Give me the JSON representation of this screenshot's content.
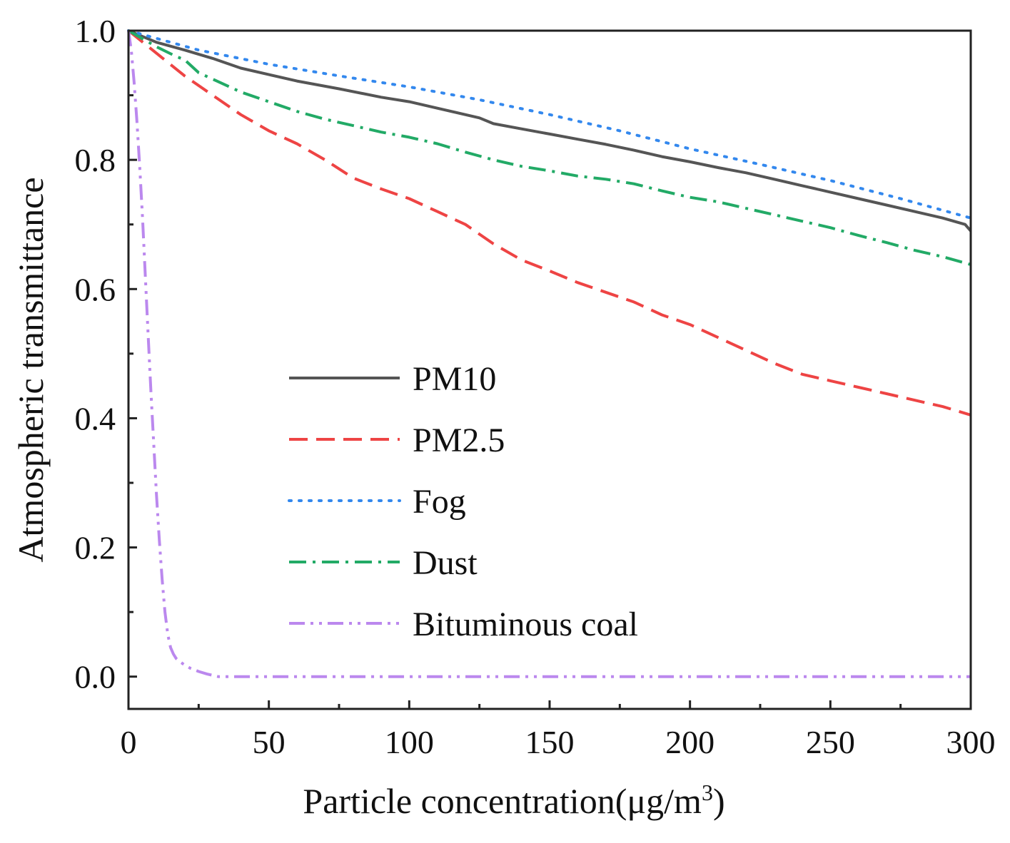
{
  "chart_data": {
    "type": "line",
    "title": "",
    "xlabel": "Particle concentration(μg/m",
    "xlabel_superscript": "3",
    "xlabel_suffix": ")",
    "ylabel": "Atmospheric transmittance",
    "xlim": [
      0,
      300
    ],
    "ylim": [
      -0.05,
      1.0
    ],
    "xticks": [
      0,
      50,
      100,
      150,
      200,
      250,
      300
    ],
    "yticks": [
      0.0,
      0.2,
      0.4,
      0.6,
      0.8,
      1.0
    ],
    "xtick_labels": [
      "0",
      "50",
      "100",
      "150",
      "200",
      "250",
      "300"
    ],
    "ytick_labels": [
      "0.0",
      "0.2",
      "0.4",
      "0.6",
      "0.8",
      "1.0"
    ],
    "grid": false,
    "legend_position": "center-left",
    "series": [
      {
        "name": "PM10",
        "color": "#555555",
        "style": "solid",
        "x": [
          0,
          10,
          20,
          30,
          40,
          50,
          60,
          75,
          90,
          100,
          110,
          125,
          130,
          140,
          150,
          160,
          170,
          180,
          190,
          200,
          210,
          220,
          230,
          240,
          250,
          260,
          270,
          280,
          290,
          298,
          300
        ],
        "y": [
          1.0,
          0.982,
          0.97,
          0.957,
          0.942,
          0.932,
          0.922,
          0.91,
          0.897,
          0.89,
          0.88,
          0.865,
          0.856,
          0.848,
          0.84,
          0.832,
          0.824,
          0.815,
          0.805,
          0.797,
          0.788,
          0.78,
          0.77,
          0.76,
          0.75,
          0.74,
          0.73,
          0.72,
          0.71,
          0.7,
          0.69
        ]
      },
      {
        "name": "PM2.5",
        "color": "#ee4444",
        "style": "dashed",
        "x": [
          0,
          10,
          20,
          30,
          40,
          50,
          60,
          70,
          80,
          90,
          100,
          110,
          120,
          130,
          140,
          150,
          160,
          170,
          180,
          190,
          200,
          210,
          220,
          230,
          240,
          250,
          260,
          270,
          280,
          290,
          300
        ],
        "y": [
          1.0,
          0.965,
          0.93,
          0.9,
          0.87,
          0.845,
          0.825,
          0.8,
          0.772,
          0.755,
          0.74,
          0.72,
          0.7,
          0.67,
          0.645,
          0.628,
          0.61,
          0.595,
          0.58,
          0.56,
          0.545,
          0.525,
          0.505,
          0.485,
          0.468,
          0.458,
          0.448,
          0.438,
          0.428,
          0.418,
          0.405
        ]
      },
      {
        "name": "Fog",
        "color": "#3388ee",
        "style": "dotted",
        "x": [
          0,
          25,
          50,
          75,
          100,
          125,
          150,
          175,
          200,
          225,
          250,
          275,
          300
        ],
        "y": [
          1.0,
          0.97,
          0.948,
          0.93,
          0.913,
          0.893,
          0.87,
          0.845,
          0.817,
          0.793,
          0.768,
          0.74,
          0.71
        ]
      },
      {
        "name": "Dust",
        "color": "#22aa66",
        "style": "dashdot",
        "x": [
          0,
          10,
          17,
          20,
          25,
          30,
          40,
          50,
          60,
          70,
          80,
          90,
          100,
          110,
          120,
          130,
          140,
          150,
          160,
          170,
          180,
          190,
          200,
          210,
          220,
          230,
          240,
          250,
          260,
          270,
          280,
          290,
          300
        ],
        "y": [
          1.0,
          0.975,
          0.96,
          0.955,
          0.935,
          0.925,
          0.905,
          0.89,
          0.875,
          0.863,
          0.853,
          0.843,
          0.835,
          0.825,
          0.812,
          0.8,
          0.79,
          0.783,
          0.775,
          0.77,
          0.763,
          0.752,
          0.742,
          0.735,
          0.725,
          0.715,
          0.705,
          0.695,
          0.683,
          0.672,
          0.66,
          0.65,
          0.638
        ]
      },
      {
        "name": "Bituminous coal",
        "color": "#bb88ee",
        "style": "dashdotdot",
        "x": [
          0,
          1,
          2,
          3,
          4,
          5,
          6,
          7,
          8,
          9,
          10,
          11,
          12,
          13,
          14,
          15,
          16,
          17,
          18,
          20,
          22,
          25,
          28,
          32,
          40,
          50,
          100,
          150,
          200,
          250,
          300
        ],
        "y": [
          1.0,
          0.97,
          0.92,
          0.86,
          0.79,
          0.71,
          0.62,
          0.53,
          0.44,
          0.36,
          0.28,
          0.21,
          0.15,
          0.1,
          0.065,
          0.045,
          0.035,
          0.028,
          0.024,
          0.018,
          0.013,
          0.008,
          0.004,
          0.0,
          0.0,
          0.0,
          0.0,
          0.0,
          0.0,
          0.0,
          0.0
        ]
      }
    ]
  }
}
